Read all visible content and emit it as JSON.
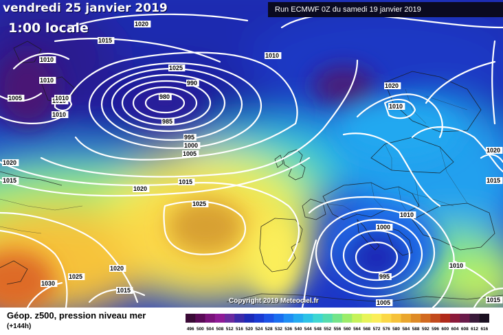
{
  "header": {
    "date": "vendredi 25 janvier 2019",
    "time": "1:00 locale",
    "run": "Run ECMWF 0Z du samedi 19 janvier 2019"
  },
  "copyright": "Copyright 2019 Meteociel.fr",
  "footer": {
    "parameter": "Géop. z500, pression niveau mer",
    "lead": "(+144h)"
  },
  "legend": {
    "ticks": [
      "496",
      "500",
      "504",
      "508",
      "512",
      "516",
      "520",
      "524",
      "528",
      "532",
      "536",
      "540",
      "544",
      "548",
      "552",
      "556",
      "560",
      "564",
      "568",
      "572",
      "576",
      "580",
      "584",
      "588",
      "592",
      "596",
      "600",
      "604",
      "608",
      "612",
      "616"
    ],
    "colors": [
      "#3a0a36",
      "#5a0a56",
      "#7a127a",
      "#8e1a96",
      "#6a2a9e",
      "#3c2aa8",
      "#1c2ab8",
      "#1b3ad2",
      "#1c52e6",
      "#1a6ef0",
      "#1f8ef4",
      "#23aaf0",
      "#2cc2e6",
      "#3ed6d2",
      "#54dcae",
      "#74e48a",
      "#9cec6a",
      "#c6f25a",
      "#e8f45a",
      "#fbee5a",
      "#fbd848",
      "#f6c23a",
      "#eaa62e",
      "#de8a26",
      "#d26a20",
      "#c24a1c",
      "#b02a1a",
      "#8c1a3a",
      "#6a1a4a",
      "#3a1a3a",
      "#1a1020"
    ]
  },
  "isobar_labels": [
    "1020",
    "1015",
    "1010",
    "1010",
    "1005",
    "1010",
    "1010",
    "1010",
    "990",
    "980",
    "985",
    "995",
    "1000",
    "1005",
    "1015",
    "1020",
    "1010",
    "1025",
    "1020",
    "1020",
    "1015",
    "1025",
    "1015",
    "1020",
    "1030",
    "1025",
    "1020",
    "1015",
    "1010",
    "1000",
    "1010",
    "995",
    "1005",
    "1010",
    "1015"
  ]
}
